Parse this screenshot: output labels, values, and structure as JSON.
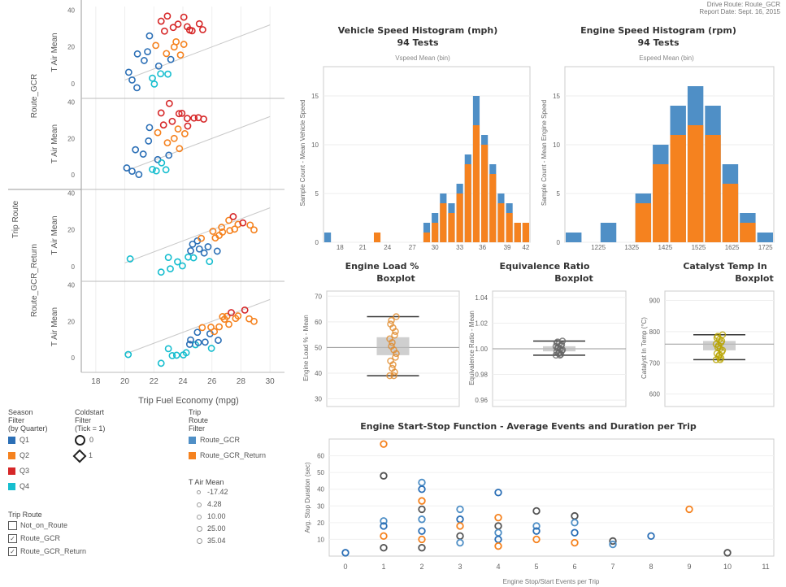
{
  "header": {
    "line1": "Drive Route: Route_GCR",
    "line2": "Report Date: Sept. 16, 2015"
  },
  "colors": {
    "Q1": "#2b6fb6",
    "Q2": "#f5821f",
    "Q3": "#d62728",
    "Q4": "#17becf",
    "blue": "#4f8fc6",
    "orange": "#f5821f"
  },
  "scatter": {
    "row_label": "Trip Route",
    "group_labels": [
      "Route_GCR",
      "Route_GCR_Return"
    ],
    "panel_labels": [
      "T Air Mean",
      "T Air Mean",
      "T Air Mean",
      "T Air Mean"
    ],
    "xlabel": "Trip Fuel Economy (mpg)",
    "xticks": [
      "18",
      "20",
      "22",
      "24",
      "26",
      "28",
      "30"
    ],
    "yticks": [
      [
        "40",
        "20",
        "0"
      ],
      [
        "40",
        "20",
        "0"
      ],
      [
        "40",
        "20",
        "0"
      ],
      [
        "40",
        "20",
        "0"
      ]
    ],
    "xlim": [
      17,
      31
    ],
    "ylim": [
      -8,
      42
    ]
  },
  "legend": {
    "season": {
      "title": [
        "Season",
        "Filter",
        "(by Quarter)"
      ],
      "items": [
        "Q1",
        "Q2",
        "Q3",
        "Q4"
      ]
    },
    "coldstart": {
      "title": [
        "Coldstart",
        "Filter",
        "(Tick = 1)"
      ],
      "items": [
        "0",
        "1"
      ]
    },
    "trip_route_filter": {
      "title": [
        "Trip",
        "Route",
        "Filter"
      ],
      "items": [
        "Route_GCR",
        "Route_GCR_Return"
      ]
    },
    "tair": {
      "title": "T Air Mean",
      "items": [
        "-17.42",
        "4.28",
        "10.00",
        "25.00",
        "35.04"
      ]
    },
    "trip_route": {
      "title": "Trip Route",
      "items": [
        "Not_on_Route",
        "Route_GCR",
        "Route_GCR_Return"
      ]
    }
  },
  "hist_speed": {
    "title": "Vehicle Speed Histogram (mph)",
    "subtitle": "94 Tests",
    "note": "Vspeed Mean (bin)",
    "ylabel": "Sample Count - Mean Vehicle Speed",
    "xticks": [
      "18",
      "21",
      "24",
      "27",
      "30",
      "33",
      "36",
      "39",
      "42"
    ],
    "yticks": [
      "15",
      "10",
      "5",
      "0"
    ]
  },
  "hist_engine": {
    "title": "Engine Speed Histogram (rpm)",
    "subtitle": "94 Tests",
    "note": "Espeed Mean (bin)",
    "ylabel": "Sample Count - Mean Engine Speed",
    "xticks": [
      "1225",
      "1325",
      "1425",
      "1525",
      "1625",
      "1725"
    ],
    "yticks": [
      "15",
      "10",
      "5",
      "0"
    ]
  },
  "box_load": {
    "title": "Engine Load %",
    "subtitle": "Boxplot",
    "ylabel": "Engine Load % - Mean",
    "yticks": [
      "70",
      "60",
      "50",
      "40",
      "30"
    ]
  },
  "box_eq": {
    "title": "Equivalence Ratio",
    "subtitle": "Boxplot",
    "ylabel": "Equivalence Ratio - Mean",
    "yticks": [
      "1.04",
      "1.02",
      "1.00",
      "0.98",
      "0.96"
    ]
  },
  "box_cat": {
    "title": "Catalyst Temp In",
    "subtitle": "Boxplot",
    "ylabel": "Catalyst In Temp (°C)",
    "yticks": [
      "900",
      "800",
      "700",
      "600"
    ]
  },
  "startstop": {
    "title": "Engine Start-Stop Function - Average Events and Duration per Trip",
    "xlabel": "Engine Stop/Start Events per Trip",
    "ylabel": "Avg. Stop Duration (sec)",
    "xticks": [
      "0",
      "1",
      "2",
      "3",
      "4",
      "5",
      "6",
      "7",
      "8",
      "9",
      "10",
      "11"
    ],
    "yticks": [
      "60",
      "50",
      "40",
      "30",
      "20",
      "10"
    ]
  },
  "chart_data": [
    {
      "type": "scatter",
      "xlabel": "Trip Fuel Economy (mpg)",
      "ylabel": "T Air Mean",
      "series": [
        {
          "name": "Route_GCR",
          "points": [
            [
              20.2,
              5
            ],
            [
              20.5,
              2
            ],
            [
              20.9,
              -1
            ],
            [
              21.3,
              12
            ],
            [
              21.6,
              18
            ],
            [
              20.8,
              15
            ],
            [
              21.9,
              3
            ],
            [
              22.1,
              1
            ],
            [
              22.3,
              9
            ],
            [
              22.5,
              6
            ],
            [
              22.9,
              4
            ],
            [
              21.7,
              26
            ],
            [
              22.2,
              22
            ],
            [
              22.7,
              28
            ],
            [
              22.9,
              17
            ],
            [
              23.1,
              12
            ],
            [
              23.4,
              20
            ],
            [
              23.6,
              24
            ],
            [
              23.8,
              15
            ],
            [
              24.1,
              22
            ],
            [
              24.4,
              28
            ],
            [
              22.5,
              34
            ],
            [
              23.0,
              38
            ],
            [
              23.3,
              30
            ],
            [
              23.7,
              33
            ],
            [
              24.0,
              35
            ],
            [
              24.3,
              31
            ],
            [
              24.7,
              30
            ],
            [
              25.1,
              32
            ],
            [
              25.4,
              30
            ]
          ]
        },
        {
          "name": "Route_GCR_Return",
          "points": [
            [
              20.3,
              3
            ],
            [
              22.5,
              -3
            ],
            [
              23.2,
              0
            ],
            [
              23.6,
              2
            ],
            [
              24.0,
              1
            ],
            [
              24.3,
              4
            ],
            [
              23.0,
              5
            ],
            [
              24.8,
              6
            ],
            [
              25.1,
              9
            ],
            [
              25.5,
              8
            ],
            [
              24.6,
              11
            ],
            [
              25.0,
              14
            ],
            [
              25.8,
              12
            ],
            [
              26.2,
              15
            ],
            [
              25.3,
              16
            ],
            [
              26.0,
              18
            ],
            [
              26.5,
              17
            ],
            [
              26.8,
              20
            ],
            [
              27.2,
              19
            ],
            [
              27.6,
              21
            ],
            [
              27.1,
              24
            ],
            [
              27.8,
              23
            ],
            [
              28.2,
              25
            ],
            [
              28.6,
              22
            ],
            [
              26.7,
              22
            ],
            [
              27.4,
              26
            ],
            [
              28.9,
              20
            ],
            [
              25.9,
              4
            ],
            [
              24.5,
              8
            ],
            [
              26.4,
              9
            ]
          ]
        }
      ]
    },
    {
      "type": "bar",
      "title": "Vehicle Speed Histogram (mph)",
      "categories": [
        "18",
        "19",
        "20",
        "21",
        "22",
        "23",
        "24",
        "25",
        "26",
        "27",
        "28",
        "29",
        "30",
        "31",
        "32",
        "33",
        "34",
        "35",
        "36",
        "37",
        "38",
        "39",
        "40",
        "41",
        "42"
      ],
      "series": [
        {
          "name": "Q1",
          "values": [
            1,
            0,
            0,
            0,
            0,
            0,
            0,
            0,
            0,
            0,
            0,
            0,
            2,
            3,
            5,
            4,
            6,
            9,
            15,
            11,
            8,
            5,
            4,
            2,
            2
          ]
        },
        {
          "name": "Q2",
          "values": [
            0,
            0,
            0,
            0,
            0,
            0,
            1,
            0,
            0,
            0,
            0,
            0,
            1,
            2,
            4,
            3,
            5,
            8,
            12,
            10,
            7,
            4,
            3,
            2,
            2
          ]
        }
      ]
    },
    {
      "type": "bar",
      "title": "Engine Speed Histogram (rpm)",
      "categories": [
        "1225",
        "1275",
        "1325",
        "1375",
        "1425",
        "1475",
        "1525",
        "1575",
        "1625",
        "1675",
        "1725",
        "1775"
      ],
      "series": [
        {
          "name": "Q1",
          "values": [
            1,
            0,
            2,
            0,
            5,
            10,
            14,
            16,
            14,
            8,
            3,
            1
          ]
        },
        {
          "name": "Q2",
          "values": [
            0,
            0,
            0,
            0,
            4,
            8,
            11,
            12,
            11,
            6,
            2,
            0
          ]
        }
      ]
    },
    {
      "type": "bar",
      "title": "Engine Load %",
      "categories": [
        "box"
      ],
      "values": [
        52
      ]
    },
    {
      "type": "bar",
      "title": "Equivalence Ratio",
      "categories": [
        "box"
      ],
      "values": [
        1.0
      ]
    },
    {
      "type": "bar",
      "title": "Catalyst Temp In",
      "categories": [
        "box"
      ],
      "values": [
        760
      ]
    },
    {
      "type": "scatter",
      "title": "Engine Start-Stop Function - Average Events and Duration per Trip",
      "points": [
        [
          0,
          2
        ],
        [
          1,
          67
        ],
        [
          1,
          48
        ],
        [
          1,
          21
        ],
        [
          1,
          18
        ],
        [
          1,
          12
        ],
        [
          1,
          5
        ],
        [
          2,
          44
        ],
        [
          2,
          40
        ],
        [
          2,
          33
        ],
        [
          2,
          28
        ],
        [
          2,
          22
        ],
        [
          2,
          15
        ],
        [
          2,
          10
        ],
        [
          2,
          5
        ],
        [
          3,
          28
        ],
        [
          3,
          22
        ],
        [
          3,
          18
        ],
        [
          3,
          12
        ],
        [
          3,
          8
        ],
        [
          4,
          38
        ],
        [
          4,
          23
        ],
        [
          4,
          18
        ],
        [
          4,
          14
        ],
        [
          4,
          10
        ],
        [
          4,
          6
        ],
        [
          5,
          27
        ],
        [
          5,
          18
        ],
        [
          5,
          15
        ],
        [
          5,
          10
        ],
        [
          6,
          24
        ],
        [
          6,
          20
        ],
        [
          6,
          14
        ],
        [
          6,
          8
        ],
        [
          7,
          9
        ],
        [
          7,
          7
        ],
        [
          8,
          12
        ],
        [
          9,
          28
        ],
        [
          10,
          2
        ]
      ]
    }
  ]
}
